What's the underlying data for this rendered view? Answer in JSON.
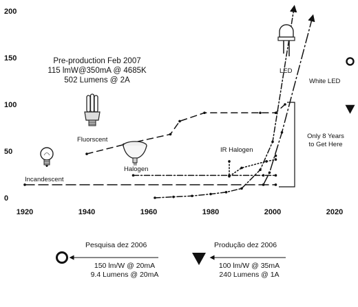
{
  "chart_data": {
    "type": "line",
    "title": "",
    "xlabel": "",
    "ylabel": "",
    "xlim": [
      1920,
      2025
    ],
    "ylim": [
      0,
      200
    ],
    "x_ticks": [
      "1920",
      "1940",
      "1960",
      "1980",
      "2000",
      "2020"
    ],
    "y_ticks": [
      "0",
      "50",
      "100",
      "150",
      "200"
    ],
    "grid": false,
    "series": [
      {
        "name": "Incandescent",
        "style": "long-dash",
        "points": [
          [
            1920,
            14
          ],
          [
            2001,
            14
          ]
        ]
      },
      {
        "name": "Fluorscent",
        "style": "dash",
        "points": [
          [
            1940,
            47
          ],
          [
            1952,
            57
          ],
          [
            1967,
            68
          ],
          [
            1970,
            82
          ],
          [
            1978,
            91
          ],
          [
            1996,
            91
          ],
          [
            2001,
            91
          ],
          [
            2004,
            100
          ]
        ]
      },
      {
        "name": "Halogen",
        "style": "dash-dot",
        "points": [
          [
            1955,
            24
          ],
          [
            1986,
            24
          ],
          [
            1997,
            24
          ],
          [
            2001,
            24
          ]
        ]
      },
      {
        "name": "IR Halogen",
        "style": "dot",
        "points": [
          [
            1986,
            39
          ],
          [
            1986,
            23
          ],
          [
            1990,
            32
          ],
          [
            1998,
            39
          ],
          [
            2001,
            41
          ],
          [
            2001,
            45
          ]
        ]
      },
      {
        "name": "LED",
        "style": "dash-dot",
        "points": [
          [
            1962,
            0
          ],
          [
            1968,
            1
          ],
          [
            1974,
            2
          ],
          [
            1980,
            4
          ],
          [
            1985,
            6
          ],
          [
            1990,
            10
          ],
          [
            1996,
            30
          ],
          [
            2000,
            60
          ],
          [
            2007,
            205
          ]
        ]
      },
      {
        "name": "White LED",
        "style": "long-dash-dot",
        "points": [
          [
            1997,
            14
          ],
          [
            1999,
            27
          ],
          [
            2003,
            70
          ],
          [
            2013,
            195
          ]
        ]
      }
    ],
    "markers": [
      {
        "name": "Pesquisa dez 2006",
        "shape": "circle",
        "x": 2025,
        "y": 146
      },
      {
        "name": "Produção dez 2006",
        "shape": "triangle",
        "x": 2025,
        "y": 95
      }
    ],
    "annotations": {
      "preproduction": [
        "Pre-production Feb 2007",
        "115 lmW@350mA @ 4685K",
        "502 Lumens @ 2A"
      ],
      "bracket": [
        "Only 8 Years",
        "to Get Here"
      ],
      "labels": {
        "incandescent": "Incandescent",
        "fluorescent": "Fluorscent",
        "halogen": "Halogen",
        "ir_halogen": "IR Halogen",
        "led": "LED",
        "white_led": "White LED"
      }
    },
    "legend": {
      "research": {
        "title": "Pesquisa dez 2006",
        "lines": [
          "150 lm/W @ 20mA",
          "9.4 Lumens @ 20mA"
        ]
      },
      "production": {
        "title": "Produção dez 2006",
        "lines": [
          "100 lm/W @ 35mA",
          "240 Lumens @ 1A"
        ]
      }
    },
    "colors": {
      "ink": "#111111",
      "background": "#ffffff"
    }
  }
}
